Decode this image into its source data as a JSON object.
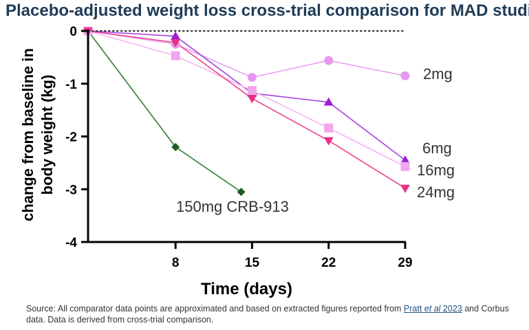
{
  "chart_data": {
    "type": "line",
    "title": "Placebo-adjusted weight loss cross-trial comparison for MAD studies",
    "xlabel": "Time (days)",
    "ylabel": [
      "change from baseline in",
      "body weight (kg)"
    ],
    "xlim": [
      0,
      29
    ],
    "ylim": [
      -4,
      0
    ],
    "x_ticks": [
      8,
      15,
      22,
      29
    ],
    "y_ticks": [
      0,
      -1,
      -2,
      -3,
      -4
    ],
    "reference_line": 0,
    "series": [
      {
        "name": "150mg CRB-913",
        "marker": "diamond",
        "color": "#2e7d32",
        "marker_color": "#1b5e20",
        "x": [
          0,
          8,
          14
        ],
        "values": [
          0,
          -2.2,
          -3.05
        ]
      },
      {
        "name": "2mg",
        "marker": "circle",
        "color": "#e8a0ef",
        "marker_color": "#e699ee",
        "x": [
          0,
          8,
          15,
          22,
          29
        ],
        "values": [
          0,
          -0.25,
          -0.88,
          -0.56,
          -0.85
        ]
      },
      {
        "name": "6mg",
        "marker": "triangle-up",
        "color": "#a640e0",
        "marker_color": "#9a1fd8",
        "x": [
          0,
          8,
          15,
          22,
          29
        ],
        "values": [
          0,
          -0.1,
          -1.18,
          -1.35,
          -2.45
        ]
      },
      {
        "name": "16mg",
        "marker": "square",
        "color": "#f6b3f0",
        "marker_color": "#f2a6ee",
        "x": [
          0,
          8,
          15,
          22,
          29
        ],
        "values": [
          0,
          -0.47,
          -1.13,
          -1.84,
          -2.57
        ]
      },
      {
        "name": "24mg",
        "marker": "triangle-down",
        "color": "#ec3f8c",
        "marker_color": "#ea2f83",
        "x": [
          0,
          8,
          15,
          22,
          29
        ],
        "values": [
          0,
          -0.22,
          -1.28,
          -2.08,
          -2.98
        ]
      }
    ]
  },
  "footnote": {
    "text_before": "Source: All comparator data points are approximated and based on extracted figures reported from ",
    "ref_author": "Pratt ",
    "ref_etal": "et al",
    "ref_year": " 2023",
    "text_after": " and Corbus data. Data is derived from cross-trial comparison."
  }
}
